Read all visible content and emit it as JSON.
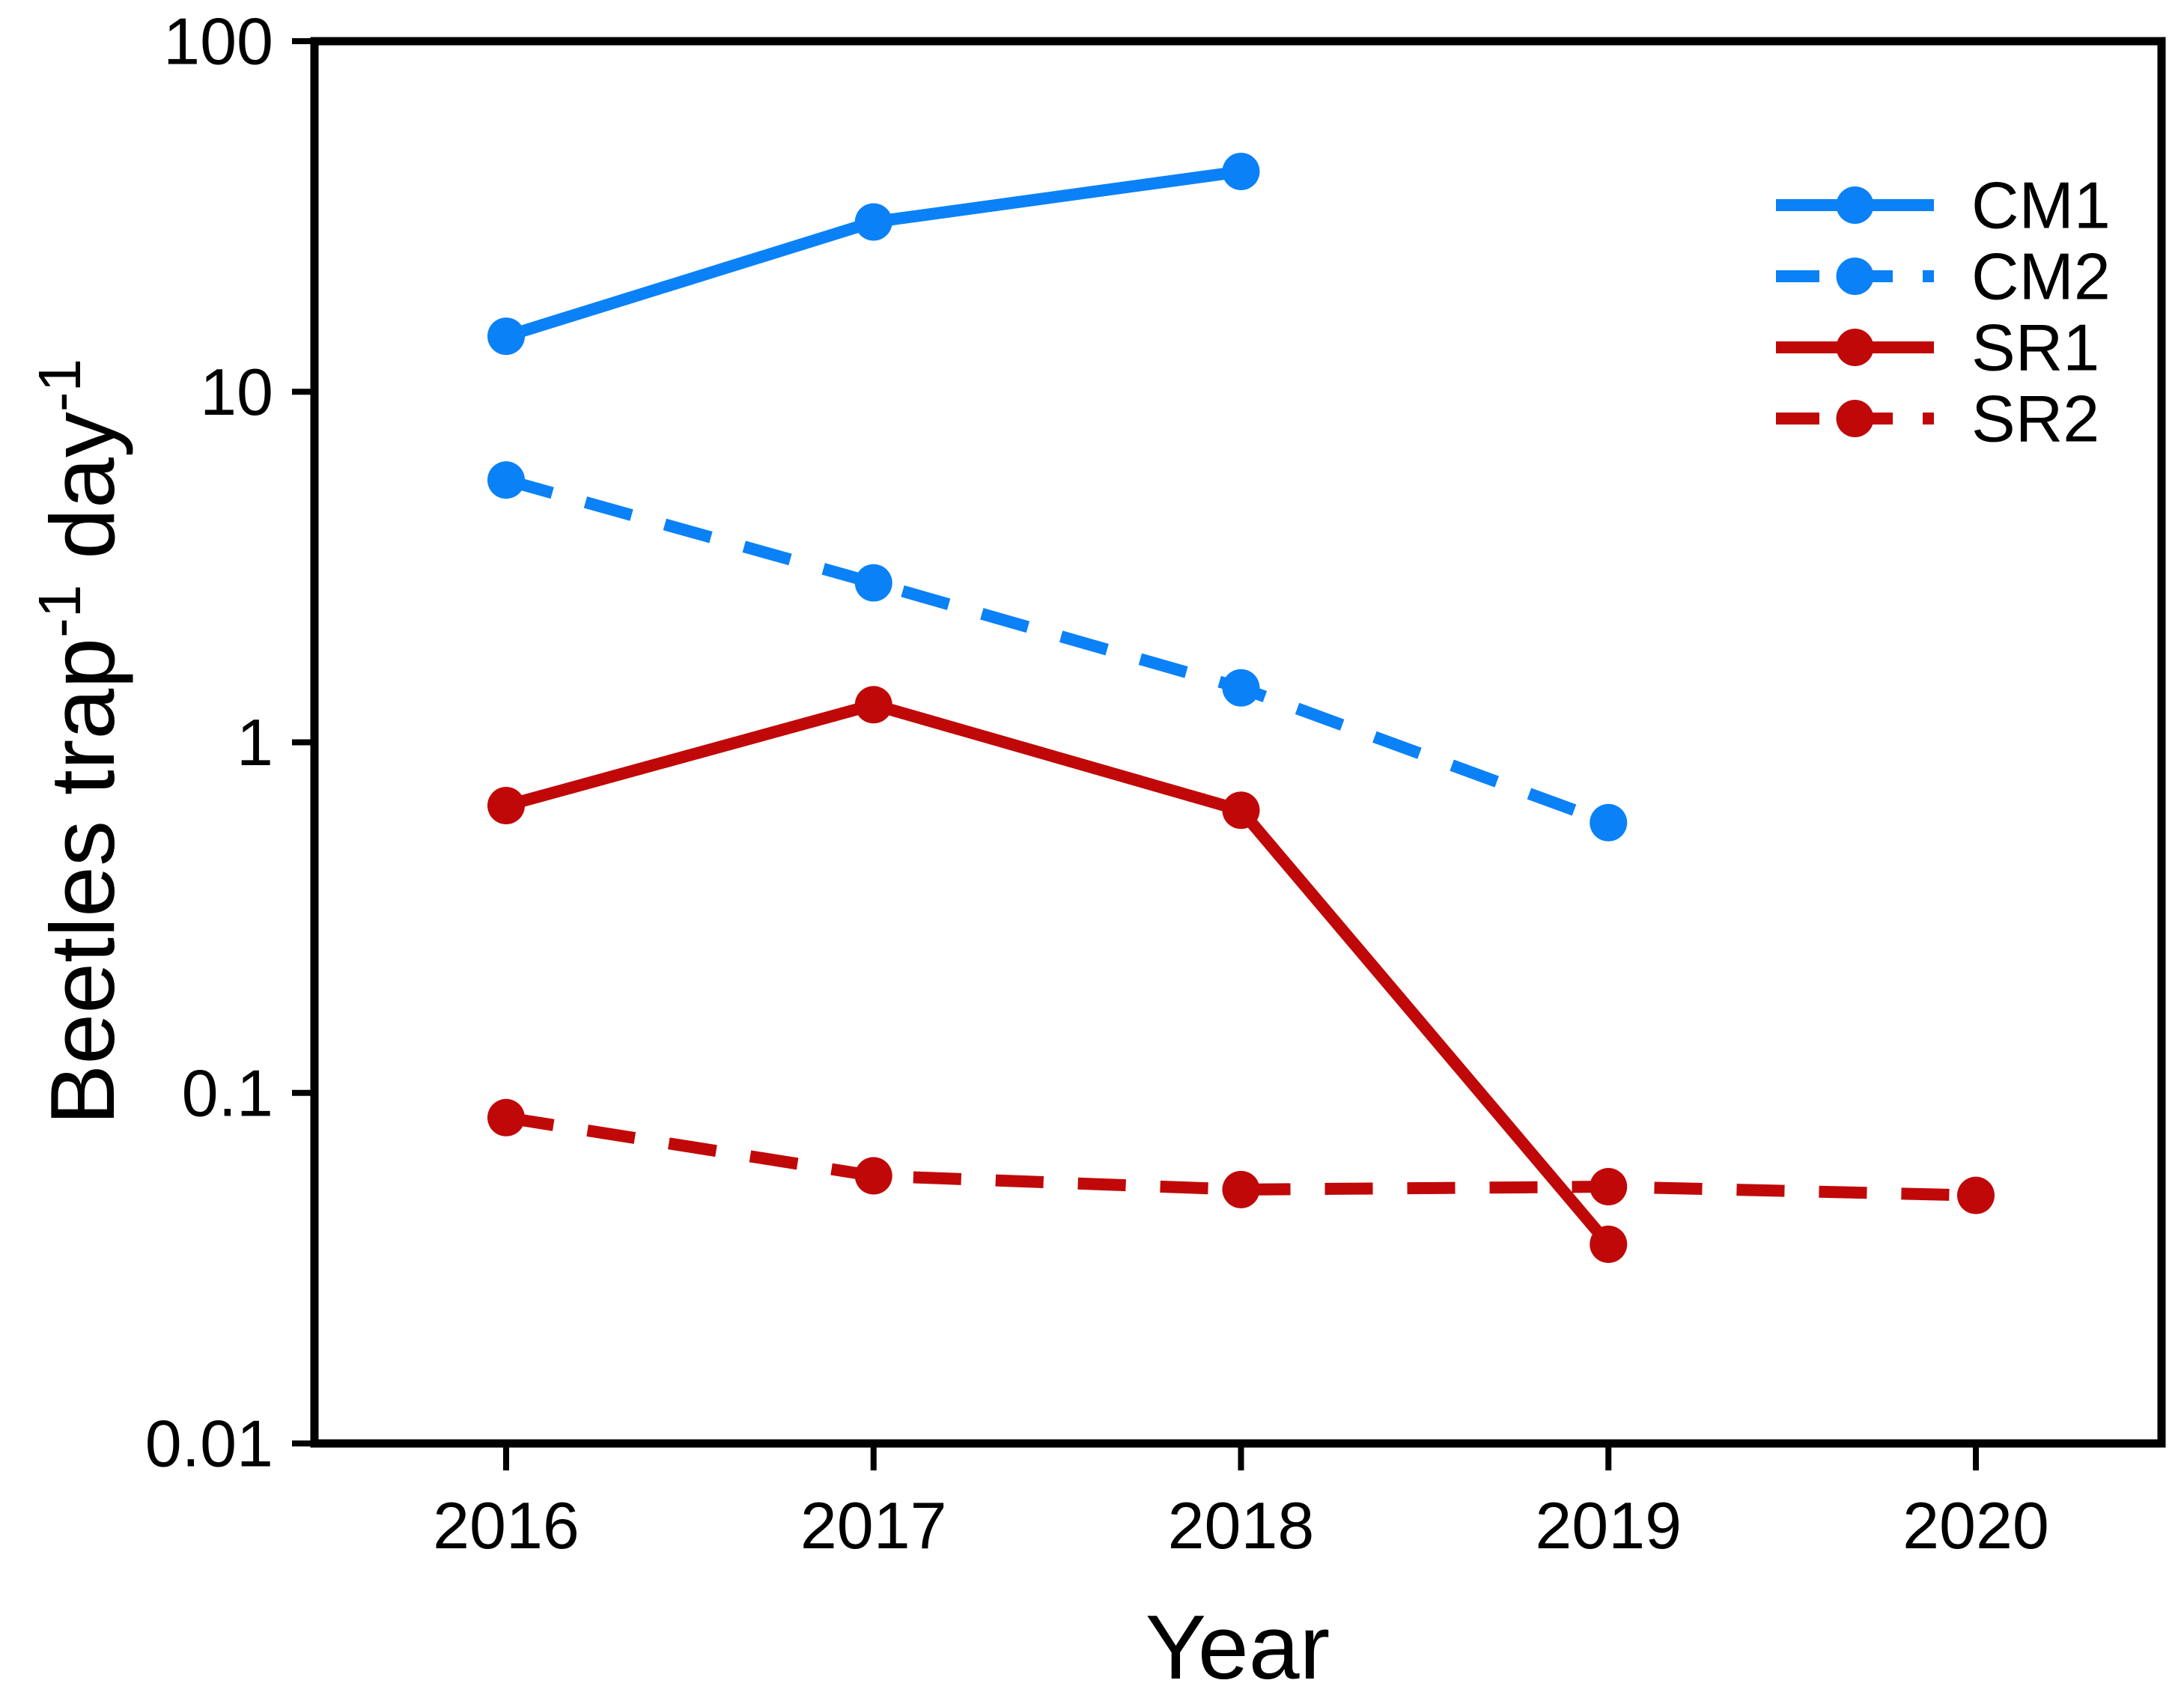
{
  "figure": {
    "background": "#ffffff",
    "frame_color": "#000000",
    "text_color": "#000000"
  },
  "chart_data": {
    "type": "line",
    "title": "",
    "xlabel": "Year",
    "ylabel": "Beetles trap⁻¹ day⁻¹",
    "ylabel_parts": [
      {
        "text": "Beetles trap"
      },
      {
        "sup": "-1"
      },
      {
        "text": " day"
      },
      {
        "sup": "-1"
      }
    ],
    "y_scale": "log",
    "ylim": [
      0.01,
      100
    ],
    "xlim": [
      2015.48,
      2020.5
    ],
    "grid": false,
    "x_ticks": [
      2016,
      2017,
      2018,
      2019,
      2020
    ],
    "x_tick_labels": [
      "2016",
      "2017",
      "2018",
      "2019",
      "2020"
    ],
    "y_ticks": [
      100,
      10,
      1,
      0.1,
      0.01
    ],
    "y_tick_labels": [
      "100",
      "10",
      "1",
      "0.1",
      "0.01"
    ],
    "series": [
      {
        "name": "CM1",
        "color": "#0a81f7",
        "line_style": "solid",
        "marker": "circle",
        "x": [
          2016,
          2017,
          2018
        ],
        "y": [
          14.4,
          30.5,
          42.5
        ]
      },
      {
        "name": "CM2",
        "color": "#0a81f7",
        "line_style": "dashed",
        "marker": "circle",
        "x": [
          2016,
          2017,
          2018,
          2019
        ],
        "y": [
          5.6,
          2.85,
          1.43,
          0.59
        ]
      },
      {
        "name": "SR1",
        "color": "#c00808",
        "line_style": "solid",
        "marker": "circle",
        "x": [
          2016,
          2017,
          2018,
          2019
        ],
        "y": [
          0.66,
          1.28,
          0.64,
          0.037
        ]
      },
      {
        "name": "SR2",
        "color": "#c00808",
        "line_style": "dashed",
        "marker": "circle",
        "x": [
          2016,
          2017,
          2018,
          2019,
          2020
        ],
        "y": [
          0.085,
          0.058,
          0.053,
          0.054,
          0.051
        ]
      }
    ],
    "legend": {
      "position": "top-right",
      "entries": [
        "CM1",
        "CM2",
        "SR1",
        "SR2"
      ]
    }
  }
}
